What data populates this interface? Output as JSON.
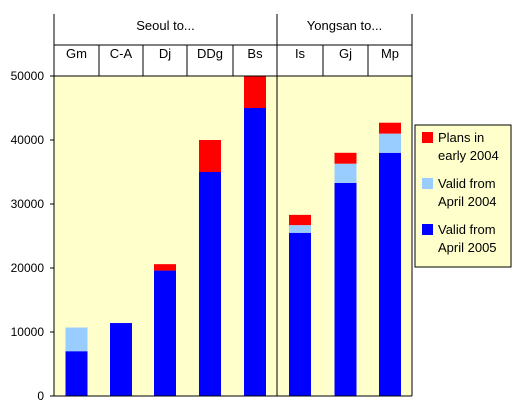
{
  "chart_data": {
    "type": "bar",
    "stacked": true,
    "groups": [
      {
        "label": "Seoul to...",
        "categories": [
          "Gm",
          "C-A",
          "Dj",
          "DDg",
          "Bs"
        ]
      },
      {
        "label": "Yongsan to...",
        "categories": [
          "Is",
          "Gj",
          "Mp"
        ]
      }
    ],
    "categories": [
      "Gm",
      "C-A",
      "Dj",
      "DDg",
      "Bs",
      "Is",
      "Gj",
      "Mp"
    ],
    "series": [
      {
        "name": "Valid from April 2005",
        "color": "#0000ff",
        "values": [
          7000,
          11400,
          19600,
          35000,
          45000,
          25500,
          33300,
          38000
        ]
      },
      {
        "name": "Valid from April 2004",
        "color": "#99ccff",
        "values": [
          3700,
          0,
          0,
          0,
          0,
          1200,
          3000,
          3000
        ]
      },
      {
        "name": "Plans in early 2004",
        "color": "#ff0000",
        "values": [
          0,
          0,
          1000,
          5000,
          5000,
          1600,
          1700,
          1700
        ]
      }
    ],
    "legend_order": [
      "Plans in early 2004",
      "Valid from April 2004",
      "Valid from April 2005"
    ],
    "yticks": [
      0,
      10000,
      20000,
      30000,
      40000,
      50000
    ],
    "ylim": [
      0,
      50000
    ],
    "legend_position": "right",
    "plot_background": "#ffffcc",
    "grid": false
  }
}
